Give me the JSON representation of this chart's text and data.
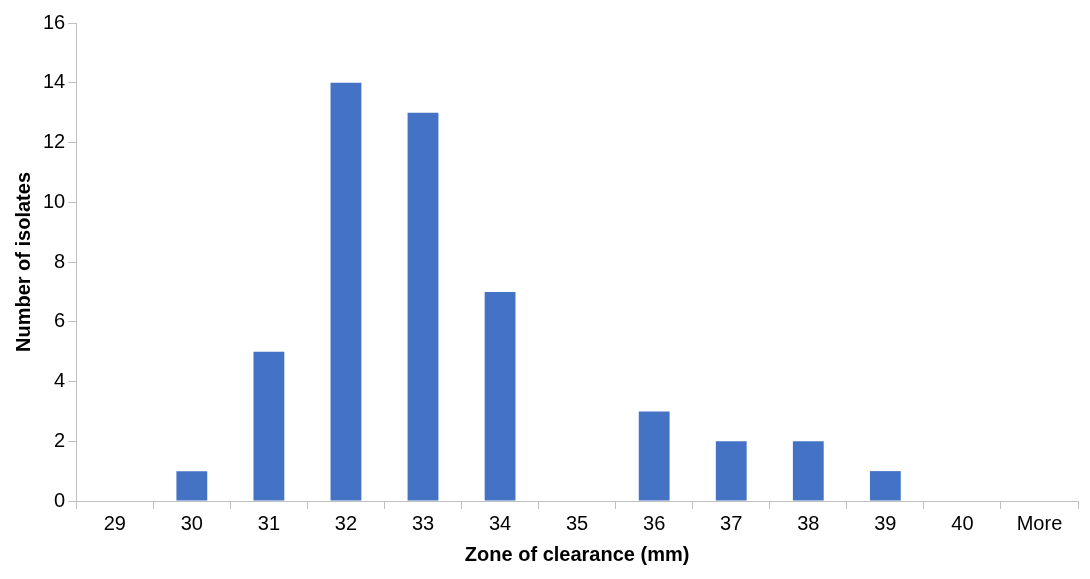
{
  "chart_data": {
    "type": "bar",
    "xlabel": "Zone of clearance (mm)",
    "ylabel": "Number of isolates",
    "categories": [
      "29",
      "30",
      "31",
      "32",
      "33",
      "34",
      "35",
      "36",
      "37",
      "38",
      "39",
      "40",
      "More"
    ],
    "values": [
      0,
      1,
      5,
      14,
      13,
      7,
      0,
      3,
      2,
      2,
      1,
      0,
      0
    ],
    "color": "#4472c4",
    "ylim": [
      0,
      16
    ],
    "yticks": [
      0,
      2,
      4,
      6,
      8,
      10,
      12,
      14,
      16
    ],
    "grid": false,
    "legend": false
  }
}
